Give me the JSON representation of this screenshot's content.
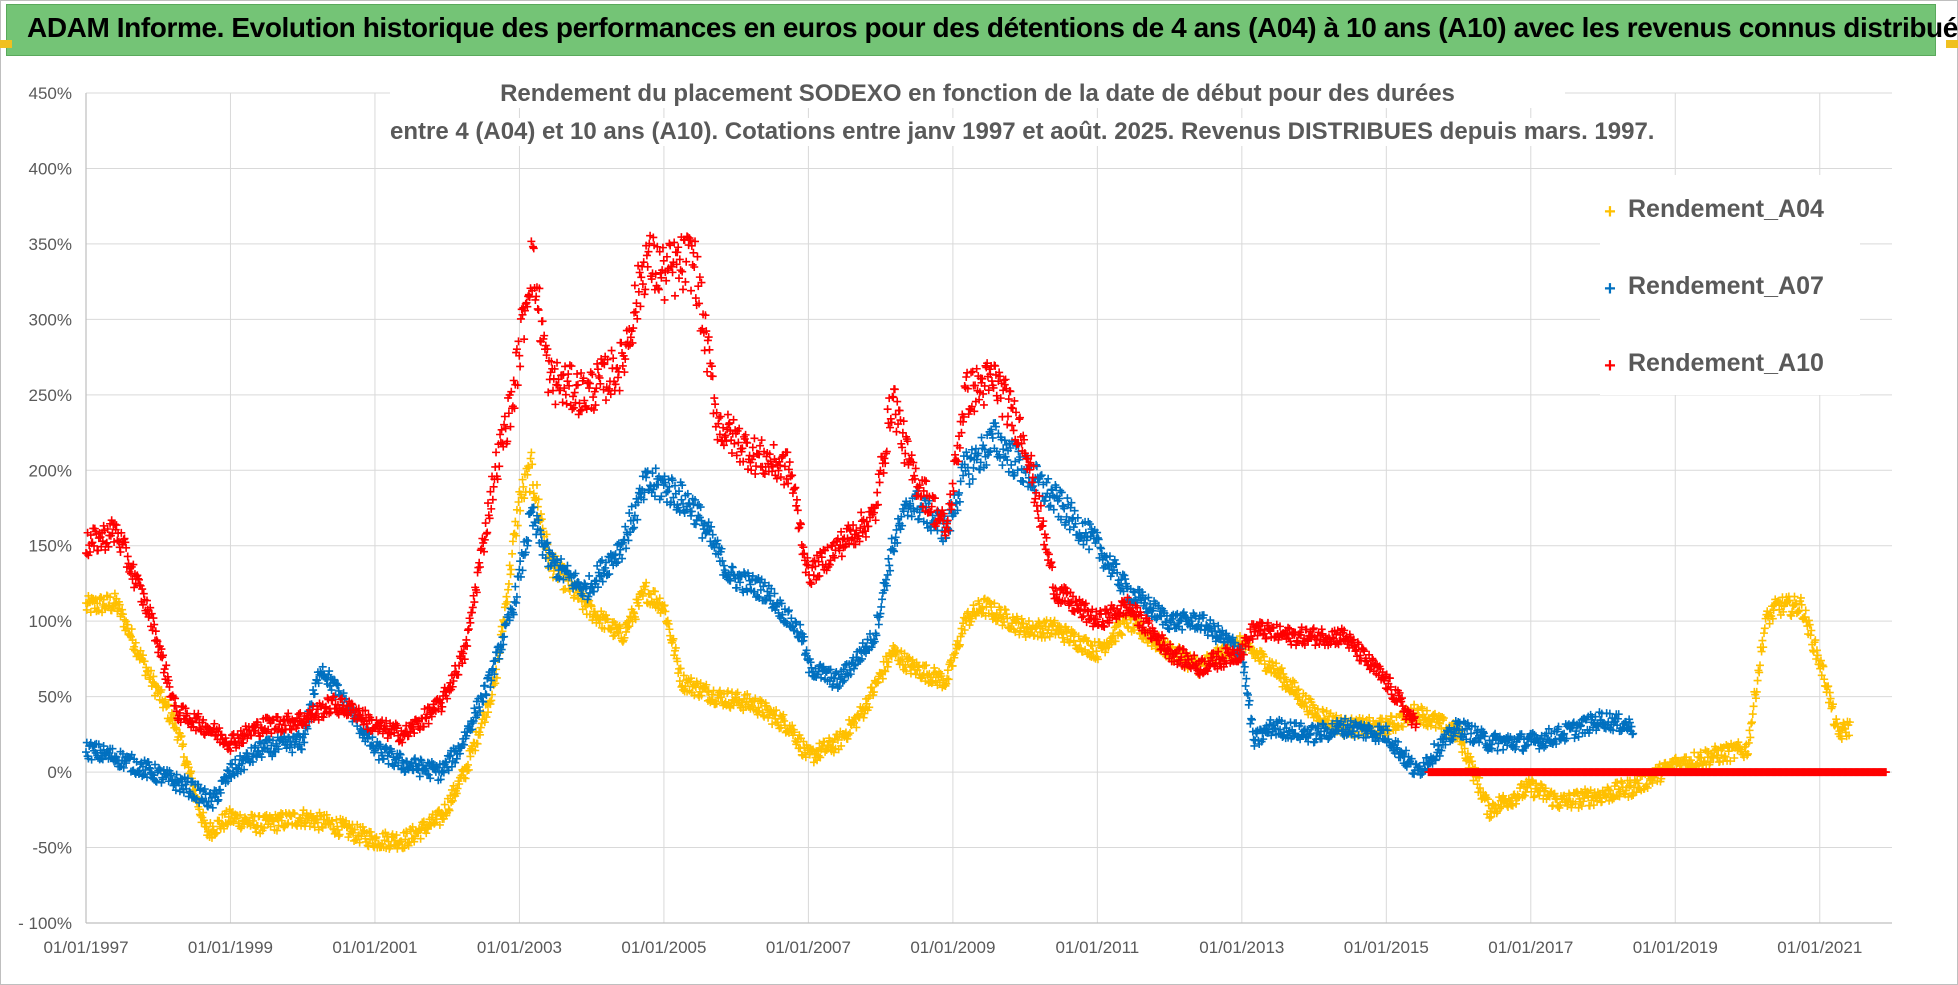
{
  "header": {
    "title": "ADAM Informe. Evolution historique des performances en euros pour des détentions de 4 ans (A04) à 10 ans (A10) avec les revenus connus distribués"
  },
  "colors": {
    "header_bg": "#74c476",
    "A04": "#ffc000",
    "A07": "#0070c0",
    "A10": "#ff0000",
    "grid": "#d9d9d9",
    "text": "#595959"
  },
  "chart_data": {
    "type": "scatter",
    "title_line1": "Rendement du placement SODEXO en fonction de la date de début pour des durées",
    "title_line2": "entre 4 (A04) et 10 ans (A10). Cotations entre janv 1997 et août. 2025. Revenus DISTRIBUES depuis mars. 1997.",
    "marker": "+",
    "x_type": "date",
    "x_range": [
      "1997-01-01",
      "2022-01-01"
    ],
    "x_tick_labels": [
      "01/01/1997",
      "01/01/1999",
      "01/01/2001",
      "01/01/2003",
      "01/01/2005",
      "01/01/2007",
      "01/01/2009",
      "01/01/2011",
      "01/01/2013",
      "01/01/2015",
      "01/01/2017",
      "01/01/2019",
      "01/01/2021"
    ],
    "y_range": [
      -100,
      450
    ],
    "y_tick_labels": [
      "- 100%",
      "-50%",
      "0%",
      "50%",
      "100%",
      "150%",
      "200%",
      "250%",
      "300%",
      "350%",
      "400%",
      "450%"
    ],
    "grid": true,
    "legend_position": "top-right",
    "series": [
      {
        "name": "Rendement_A04",
        "color": "#ffc000",
        "points": [
          [
            "1997-01",
            110
          ],
          [
            "1997-06",
            112
          ],
          [
            "1997-12",
            60
          ],
          [
            "1998-04",
            30
          ],
          [
            "1998-09",
            -40
          ],
          [
            "1999-01",
            -30
          ],
          [
            "1999-06",
            -35
          ],
          [
            "2000-01",
            -30
          ],
          [
            "2000-06",
            -35
          ],
          [
            "2001-01",
            -45
          ],
          [
            "2001-06",
            -45
          ],
          [
            "2001-12",
            -30
          ],
          [
            "2002-04",
            0
          ],
          [
            "2002-09",
            60
          ],
          [
            "2003-01",
            180
          ],
          [
            "2003-03",
            200
          ],
          [
            "2003-06",
            140
          ],
          [
            "2003-12",
            110
          ],
          [
            "2004-06",
            90
          ],
          [
            "2004-10",
            120
          ],
          [
            "2005-01",
            110
          ],
          [
            "2005-04",
            60
          ],
          [
            "2005-10",
            50
          ],
          [
            "2006-04",
            45
          ],
          [
            "2006-10",
            30
          ],
          [
            "2007-01",
            10
          ],
          [
            "2007-06",
            20
          ],
          [
            "2007-10",
            40
          ],
          [
            "2008-03",
            80
          ],
          [
            "2008-06",
            70
          ],
          [
            "2008-12",
            60
          ],
          [
            "2009-03",
            100
          ],
          [
            "2009-06",
            110
          ],
          [
            "2010-01",
            95
          ],
          [
            "2010-06",
            95
          ],
          [
            "2011-01",
            80
          ],
          [
            "2011-06",
            100
          ],
          [
            "2012-01",
            80
          ],
          [
            "2012-06",
            70
          ],
          [
            "2013-01",
            85
          ],
          [
            "2013-06",
            70
          ],
          [
            "2014-01",
            40
          ],
          [
            "2014-06",
            30
          ],
          [
            "2015-01",
            30
          ],
          [
            "2015-06",
            40
          ],
          [
            "2016-01",
            25
          ],
          [
            "2016-06",
            -25
          ],
          [
            "2017-01",
            -10
          ],
          [
            "2017-06",
            -20
          ],
          [
            "2018-01",
            -15
          ],
          [
            "2018-06",
            -10
          ],
          [
            "2019-01",
            5
          ],
          [
            "2019-06",
            10
          ],
          [
            "2020-01",
            15
          ],
          [
            "2020-04",
            100
          ],
          [
            "2020-06",
            110
          ],
          [
            "2020-10",
            110
          ],
          [
            "2021-02",
            60
          ],
          [
            "2021-04",
            25
          ],
          [
            "2021-06",
            30
          ]
        ]
      },
      {
        "name": "Rendement_A07",
        "color": "#0070c0",
        "points": [
          [
            "1997-01",
            15
          ],
          [
            "1997-06",
            10
          ],
          [
            "1997-12",
            0
          ],
          [
            "1998-06",
            -10
          ],
          [
            "1998-10",
            -20
          ],
          [
            "1999-01",
            0
          ],
          [
            "1999-06",
            15
          ],
          [
            "2000-01",
            20
          ],
          [
            "2000-04",
            70
          ],
          [
            "2000-09",
            40
          ],
          [
            "2001-01",
            15
          ],
          [
            "2001-06",
            5
          ],
          [
            "2001-12",
            0
          ],
          [
            "2002-03",
            15
          ],
          [
            "2002-08",
            60
          ],
          [
            "2002-12",
            110
          ],
          [
            "2003-03",
            170
          ],
          [
            "2003-06",
            140
          ],
          [
            "2003-12",
            120
          ],
          [
            "2004-06",
            150
          ],
          [
            "2004-10",
            190
          ],
          [
            "2005-01",
            190
          ],
          [
            "2005-06",
            175
          ],
          [
            "2005-12",
            130
          ],
          [
            "2006-06",
            120
          ],
          [
            "2006-12",
            90
          ],
          [
            "2007-01",
            70
          ],
          [
            "2007-06",
            60
          ],
          [
            "2007-12",
            90
          ],
          [
            "2008-03",
            150
          ],
          [
            "2008-06",
            180
          ],
          [
            "2008-12",
            160
          ],
          [
            "2009-03",
            200
          ],
          [
            "2009-08",
            220
          ],
          [
            "2010-01",
            200
          ],
          [
            "2010-06",
            180
          ],
          [
            "2011-01",
            150
          ],
          [
            "2011-06",
            120
          ],
          [
            "2012-01",
            100
          ],
          [
            "2012-06",
            100
          ],
          [
            "2013-01",
            80
          ],
          [
            "2013-03",
            20
          ],
          [
            "2013-06",
            30
          ],
          [
            "2014-01",
            25
          ],
          [
            "2014-06",
            30
          ],
          [
            "2015-01",
            25
          ],
          [
            "2015-06",
            0
          ],
          [
            "2016-01",
            30
          ],
          [
            "2016-06",
            20
          ],
          [
            "2017-01",
            20
          ],
          [
            "2017-06",
            25
          ],
          [
            "2018-01",
            35
          ],
          [
            "2018-06",
            30
          ]
        ]
      },
      {
        "name": "Rendement_A10",
        "color": "#ff0000",
        "points": [
          [
            "1997-01",
            150
          ],
          [
            "1997-06",
            160
          ],
          [
            "1997-12",
            100
          ],
          [
            "1998-04",
            40
          ],
          [
            "1998-09",
            30
          ],
          [
            "1999-01",
            20
          ],
          [
            "1999-06",
            30
          ],
          [
            "2000-01",
            35
          ],
          [
            "2000-06",
            45
          ],
          [
            "2000-10",
            40
          ],
          [
            "2001-01",
            30
          ],
          [
            "2001-06",
            25
          ],
          [
            "2001-12",
            45
          ],
          [
            "2002-04",
            80
          ],
          [
            "2002-09",
            200
          ],
          [
            "2002-12",
            250
          ],
          [
            "2003-03",
            340
          ],
          [
            "2003-06",
            260
          ],
          [
            "2003-12",
            250
          ],
          [
            "2004-06",
            270
          ],
          [
            "2004-10",
            340
          ],
          [
            "2005-01",
            330
          ],
          [
            "2005-06",
            340
          ],
          [
            "2005-10",
            230
          ],
          [
            "2006-04",
            210
          ],
          [
            "2006-10",
            200
          ],
          [
            "2007-01",
            130
          ],
          [
            "2007-06",
            150
          ],
          [
            "2007-12",
            170
          ],
          [
            "2008-03",
            250
          ],
          [
            "2008-06",
            200
          ],
          [
            "2008-12",
            160
          ],
          [
            "2009-03",
            250
          ],
          [
            "2009-08",
            260
          ],
          [
            "2010-01",
            220
          ],
          [
            "2010-06",
            120
          ],
          [
            "2011-01",
            100
          ],
          [
            "2011-06",
            110
          ],
          [
            "2012-01",
            80
          ],
          [
            "2012-06",
            70
          ],
          [
            "2013-01",
            80
          ],
          [
            "2013-03",
            95
          ],
          [
            "2013-09",
            90
          ],
          [
            "2014-06",
            90
          ],
          [
            "2015-01",
            60
          ],
          [
            "2015-06",
            30
          ]
        ],
        "zero_from": "2015-08",
        "zero_to": "2021-12"
      }
    ]
  }
}
